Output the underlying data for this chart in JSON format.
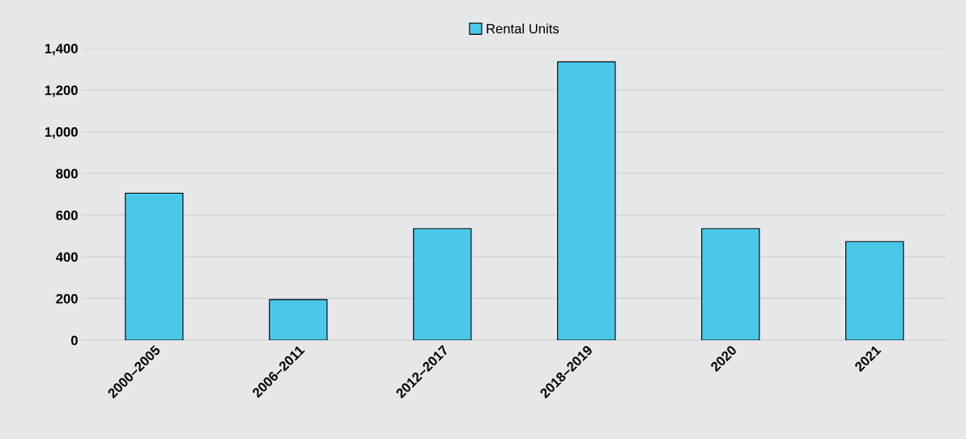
{
  "chart_data": {
    "type": "bar",
    "categories": [
      "2000–2005",
      "2006–2011",
      "2012–2017",
      "2018–2019",
      "2020",
      "2021"
    ],
    "series": [
      {
        "name": "Rental Units",
        "color": "#4ac8e8",
        "values": [
          705,
          195,
          535,
          1335,
          535,
          473
        ]
      }
    ],
    "ylim": [
      0,
      1400
    ],
    "yticks": [
      0,
      {
        "value": 200,
        "label": "200"
      },
      {
        "value": 400,
        "label": "400"
      },
      {
        "value": 600,
        "label": "600"
      },
      {
        "value": 800,
        "label": "800"
      },
      {
        "value": 1000,
        "label": "1,000"
      },
      {
        "value": 1200,
        "label": "1,200"
      },
      {
        "value": 1400,
        "label": "1,400"
      }
    ],
    "grid": "y",
    "legend": "top"
  }
}
